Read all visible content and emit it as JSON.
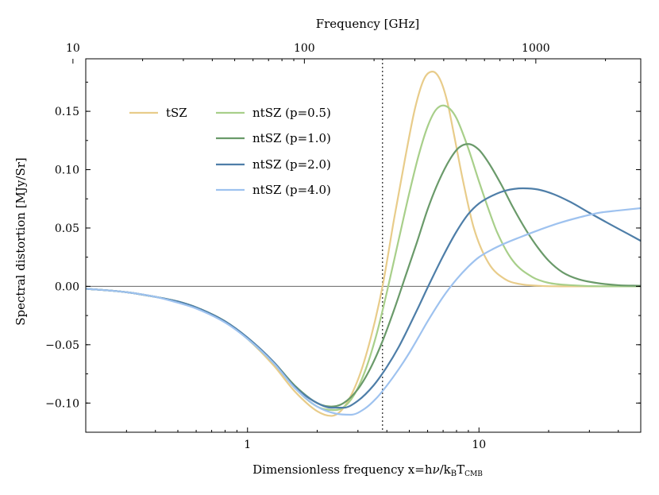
{
  "chart_data": {
    "type": "line",
    "xscale": "log",
    "xlim": [
      0.2,
      50
    ],
    "ylim": [
      -0.125,
      0.195
    ],
    "xlabel": "Dimensionless frequency x=hν/k_B T_CMB",
    "xlabel_parts": {
      "main": "Dimensionless frequency x=h",
      "nu": "ν",
      "slash": "/k",
      "sub_b": "B",
      "t": "T",
      "sub_cmb": "CMB"
    },
    "ylabel": "Spectral distortion [MJy/Sr]",
    "top_axis": {
      "label": "Frequency [GHz]",
      "ghz_per_x": 56.8,
      "ticks": [
        {
          "value": 10,
          "label": "10"
        },
        {
          "value": 100,
          "label": "100"
        },
        {
          "value": 1000,
          "label": "1000"
        }
      ]
    },
    "x_ticks": [
      {
        "value": 1,
        "label": "1"
      },
      {
        "value": 10,
        "label": "10"
      }
    ],
    "y_ticks": [
      {
        "value": -0.1,
        "label": "−0.10"
      },
      {
        "value": -0.05,
        "label": "−0.05"
      },
      {
        "value": 0.0,
        "label": "0.00"
      },
      {
        "value": 0.05,
        "label": "0.05"
      },
      {
        "value": 0.1,
        "label": "0.10"
      },
      {
        "value": 0.15,
        "label": "0.15"
      }
    ],
    "vline_x": 3.83,
    "hline_y": 0.0,
    "legend": "upper-left",
    "series": [
      {
        "name": "tSZ",
        "color": "#e8cc8a",
        "x": [
          0.2,
          0.3,
          0.4,
          0.5,
          0.6,
          0.8,
          1.0,
          1.3,
          1.6,
          2.0,
          2.3,
          2.6,
          3.0,
          3.4,
          3.83,
          4.3,
          4.8,
          5.3,
          5.8,
          6.3,
          6.8,
          7.3,
          7.8,
          8.5,
          9.5,
          11,
          13,
          15,
          18,
          25,
          50
        ],
        "y": [
          -0.002,
          -0.005,
          -0.009,
          -0.013,
          -0.018,
          -0.03,
          -0.045,
          -0.068,
          -0.09,
          -0.107,
          -0.111,
          -0.104,
          -0.08,
          -0.045,
          0.0,
          0.058,
          0.11,
          0.153,
          0.178,
          0.184,
          0.177,
          0.158,
          0.13,
          0.092,
          0.05,
          0.02,
          0.006,
          0.002,
          0.0005,
          0.0,
          0.0
        ]
      },
      {
        "name": "ntSZ (p=0.5)",
        "color": "#a8cf8a",
        "x": [
          0.2,
          0.3,
          0.4,
          0.5,
          0.6,
          0.8,
          1.0,
          1.3,
          1.6,
          2.0,
          2.4,
          2.8,
          3.2,
          3.6,
          4.0,
          4.5,
          5.0,
          5.5,
          6.0,
          6.5,
          7.0,
          7.5,
          8.0,
          9.0,
          10,
          11,
          12,
          14,
          17,
          20,
          25,
          35,
          50
        ],
        "y": [
          -0.002,
          -0.005,
          -0.009,
          -0.013,
          -0.018,
          -0.03,
          -0.045,
          -0.066,
          -0.087,
          -0.103,
          -0.106,
          -0.097,
          -0.074,
          -0.042,
          -0.005,
          0.04,
          0.08,
          0.113,
          0.137,
          0.151,
          0.155,
          0.152,
          0.144,
          0.118,
          0.09,
          0.066,
          0.046,
          0.022,
          0.008,
          0.003,
          0.001,
          0.0,
          0.0
        ]
      },
      {
        "name": "ntSZ (p=1.0)",
        "color": "#6a9a6a",
        "x": [
          0.2,
          0.3,
          0.4,
          0.5,
          0.6,
          0.8,
          1.0,
          1.3,
          1.6,
          2.0,
          2.3,
          2.6,
          3.0,
          3.4,
          3.83,
          4.3,
          4.8,
          5.4,
          6.0,
          6.7,
          7.5,
          8.2,
          9.0,
          10,
          11,
          12.5,
          14,
          16,
          18,
          20,
          23,
          27,
          32,
          40,
          50
        ],
        "y": [
          -0.002,
          -0.005,
          -0.009,
          -0.013,
          -0.018,
          -0.03,
          -0.044,
          -0.065,
          -0.085,
          -0.1,
          -0.103,
          -0.1,
          -0.088,
          -0.07,
          -0.047,
          -0.02,
          0.008,
          0.038,
          0.066,
          0.09,
          0.109,
          0.119,
          0.122,
          0.117,
          0.106,
          0.087,
          0.068,
          0.048,
          0.033,
          0.022,
          0.012,
          0.006,
          0.003,
          0.001,
          0.0005
        ]
      },
      {
        "name": "ntSZ (p=2.0)",
        "color": "#4e7ea8",
        "x": [
          0.2,
          0.3,
          0.4,
          0.5,
          0.6,
          0.8,
          1.0,
          1.3,
          1.6,
          2.0,
          2.3,
          2.6,
          3.0,
          3.5,
          4.0,
          4.5,
          5.0,
          5.5,
          6.0,
          7.0,
          8.0,
          9.0,
          10,
          11.5,
          13,
          15.5,
          18,
          21,
          25,
          30,
          37,
          44,
          50
        ],
        "y": [
          -0.002,
          -0.005,
          -0.009,
          -0.013,
          -0.018,
          -0.03,
          -0.044,
          -0.065,
          -0.086,
          -0.1,
          -0.104,
          -0.104,
          -0.098,
          -0.085,
          -0.069,
          -0.052,
          -0.034,
          -0.017,
          -0.001,
          0.026,
          0.047,
          0.062,
          0.071,
          0.078,
          0.082,
          0.084,
          0.083,
          0.079,
          0.072,
          0.063,
          0.053,
          0.045,
          0.039
        ]
      },
      {
        "name": "ntSZ (p=4.0)",
        "color": "#9ec2ef",
        "x": [
          0.2,
          0.3,
          0.4,
          0.5,
          0.6,
          0.8,
          1.0,
          1.3,
          1.6,
          2.0,
          2.4,
          2.8,
          3.2,
          3.6,
          4.0,
          4.5,
          5.0,
          5.5,
          6.0,
          7.0,
          8.0,
          9.0,
          10,
          11.5,
          13,
          15,
          18,
          22,
          27,
          33,
          40,
          50
        ],
        "y": [
          -0.002,
          -0.005,
          -0.009,
          -0.014,
          -0.019,
          -0.031,
          -0.045,
          -0.066,
          -0.087,
          -0.103,
          -0.109,
          -0.11,
          -0.105,
          -0.096,
          -0.085,
          -0.071,
          -0.057,
          -0.043,
          -0.03,
          -0.009,
          0.006,
          0.017,
          0.025,
          0.032,
          0.037,
          0.042,
          0.048,
          0.054,
          0.059,
          0.063,
          0.065,
          0.067
        ]
      }
    ]
  }
}
